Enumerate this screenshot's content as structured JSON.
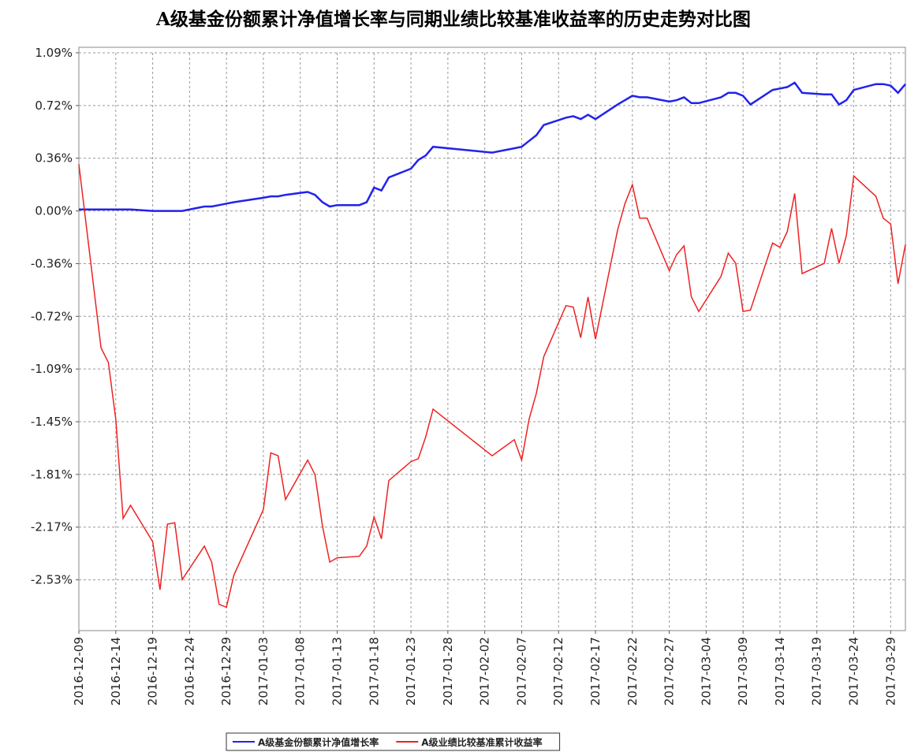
{
  "chart_data": {
    "type": "line",
    "title": "A级基金份额累计净值增长率与同期业绩比较基准收益率的历史走势对比图",
    "x": [
      "2016-12-09",
      "2016-12-12",
      "2016-12-13",
      "2016-12-14",
      "2016-12-15",
      "2016-12-16",
      "2016-12-19",
      "2016-12-20",
      "2016-12-21",
      "2016-12-22",
      "2016-12-23",
      "2016-12-26",
      "2016-12-27",
      "2016-12-28",
      "2016-12-29",
      "2016-12-30",
      "2017-01-03",
      "2017-01-04",
      "2017-01-05",
      "2017-01-06",
      "2017-01-09",
      "2017-01-10",
      "2017-01-11",
      "2017-01-12",
      "2017-01-13",
      "2017-01-16",
      "2017-01-17",
      "2017-01-18",
      "2017-01-19",
      "2017-01-20",
      "2017-01-23",
      "2017-01-24",
      "2017-01-25",
      "2017-01-26",
      "2017-02-03",
      "2017-02-06",
      "2017-02-07",
      "2017-02-08",
      "2017-02-09",
      "2017-02-10",
      "2017-02-13",
      "2017-02-14",
      "2017-02-15",
      "2017-02-16",
      "2017-02-17",
      "2017-02-20",
      "2017-02-21",
      "2017-02-22",
      "2017-02-23",
      "2017-02-24",
      "2017-02-27",
      "2017-02-28",
      "2017-03-01",
      "2017-03-02",
      "2017-03-03",
      "2017-03-06",
      "2017-03-07",
      "2017-03-08",
      "2017-03-09",
      "2017-03-10",
      "2017-03-13",
      "2017-03-14",
      "2017-03-15",
      "2017-03-16",
      "2017-03-17",
      "2017-03-20",
      "2017-03-21",
      "2017-03-22",
      "2017-03-23",
      "2017-03-24",
      "2017-03-27",
      "2017-03-28",
      "2017-03-29",
      "2017-03-30",
      "2017-03-31"
    ],
    "series": [
      {
        "name": "A级基金份额累计净值增长率",
        "color": "#2222ee",
        "values": [
          0.01,
          0.01,
          0.01,
          0.01,
          0.01,
          0.01,
          0.0,
          0.0,
          0.0,
          0.0,
          0.0,
          0.03,
          0.03,
          0.04,
          0.05,
          0.06,
          0.09,
          0.1,
          0.1,
          0.11,
          0.13,
          0.11,
          0.06,
          0.03,
          0.04,
          0.04,
          0.06,
          0.16,
          0.14,
          0.23,
          0.29,
          0.35,
          0.38,
          0.44,
          0.4,
          0.43,
          0.44,
          0.48,
          0.52,
          0.59,
          0.64,
          0.65,
          0.63,
          0.66,
          0.63,
          0.73,
          0.76,
          0.79,
          0.78,
          0.78,
          0.75,
          0.76,
          0.78,
          0.74,
          0.74,
          0.78,
          0.81,
          0.81,
          0.79,
          0.73,
          0.83,
          0.84,
          0.85,
          0.88,
          0.81,
          0.8,
          0.8,
          0.73,
          0.76,
          0.83,
          0.87,
          0.87,
          0.86,
          0.81,
          0.87
        ]
      },
      {
        "name": "A级业绩比较基准累计收益率",
        "color": "#ee2222",
        "values": [
          0.32,
          -0.94,
          -1.04,
          -1.43,
          -2.11,
          -2.02,
          -2.27,
          -2.6,
          -2.15,
          -2.14,
          -2.53,
          -2.3,
          -2.41,
          -2.7,
          -2.72,
          -2.5,
          -2.05,
          -1.66,
          -1.68,
          -1.98,
          -1.71,
          -1.81,
          -2.16,
          -2.41,
          -2.38,
          -2.37,
          -2.3,
          -2.1,
          -2.25,
          -1.85,
          -1.72,
          -1.7,
          -1.55,
          -1.36,
          -1.68,
          -1.57,
          -1.71,
          -1.43,
          -1.25,
          -1.0,
          -0.65,
          -0.66,
          -0.87,
          -0.59,
          -0.88,
          -0.13,
          0.05,
          0.18,
          -0.05,
          -0.05,
          -0.41,
          -0.3,
          -0.24,
          -0.59,
          -0.69,
          -0.45,
          -0.29,
          -0.36,
          -0.69,
          -0.68,
          -0.22,
          -0.25,
          -0.14,
          0.12,
          -0.43,
          -0.36,
          -0.12,
          -0.36,
          -0.17,
          0.24,
          0.1,
          -0.05,
          -0.09,
          -0.5,
          -0.23
        ]
      }
    ],
    "xlim": [
      "2016-12-09",
      "2017-03-31"
    ],
    "xticks": [
      "2016-12-09",
      "2016-12-14",
      "2016-12-19",
      "2016-12-24",
      "2016-12-29",
      "2017-01-03",
      "2017-01-08",
      "2017-01-13",
      "2017-01-18",
      "2017-01-23",
      "2017-01-28",
      "2017-02-02",
      "2017-02-07",
      "2017-02-12",
      "2017-02-17",
      "2017-02-22",
      "2017-02-27",
      "2017-03-04",
      "2017-03-09",
      "2017-03-14",
      "2017-03-19",
      "2017-03-24",
      "2017-03-29"
    ],
    "ylim": [
      -2.88,
      1.085
    ],
    "yticks": [
      {
        "value": 1.085,
        "label": "1.09%"
      },
      {
        "value": 0.7233,
        "label": "0.72%"
      },
      {
        "value": 0.3617,
        "label": "0.36%"
      },
      {
        "value": 0,
        "label": "0.00%"
      },
      {
        "value": -0.3617,
        "label": "-0.36%"
      },
      {
        "value": -0.7233,
        "label": "-0.72%"
      },
      {
        "value": -1.085,
        "label": "-1.09%"
      },
      {
        "value": -1.4467,
        "label": "-1.45%"
      },
      {
        "value": -1.8083,
        "label": "-1.81%"
      },
      {
        "value": -2.17,
        "label": "-2.17%"
      },
      {
        "value": -2.5317,
        "label": "-2.53%"
      }
    ],
    "grid": true,
    "legend": "bottom"
  }
}
